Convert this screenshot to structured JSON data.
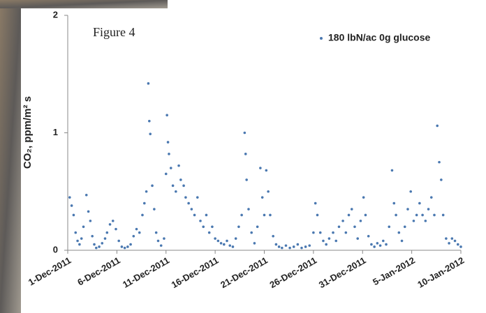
{
  "chart_data": {
    "type": "scatter",
    "title": "Figure 4",
    "y_label": "CO₂, ppm/m² s",
    "legend": "top-right",
    "grid": false,
    "xlim": [
      0,
      40
    ],
    "ylim": [
      0,
      2
    ],
    "xticks": [
      {
        "value": 0,
        "label": "1-Dec-2011"
      },
      {
        "value": 5,
        "label": "6-Dec-2011"
      },
      {
        "value": 10,
        "label": "11-Dec-2011"
      },
      {
        "value": 15,
        "label": "16-Dec-2011"
      },
      {
        "value": 20,
        "label": "21-Dec-2011"
      },
      {
        "value": 25,
        "label": "26-Dec-2011"
      },
      {
        "value": 30,
        "label": "31-Dec-2011"
      },
      {
        "value": 35,
        "label": "5-Jan-2012"
      },
      {
        "value": 40,
        "label": "10-Jan-2012"
      }
    ],
    "yticks": [
      0,
      1,
      2
    ],
    "series": [
      {
        "name": "180 lbN/ac  0g glucose",
        "color": "#4a78b0",
        "x": [
          0.2,
          0.4,
          0.6,
          0.8,
          1.0,
          1.2,
          1.4,
          1.6,
          1.9,
          2.1,
          2.3,
          2.5,
          2.7,
          2.9,
          3.2,
          3.5,
          3.8,
          4.0,
          4.3,
          4.6,
          4.9,
          5.2,
          5.5,
          5.8,
          6.1,
          6.4,
          6.7,
          7.0,
          7.3,
          7.6,
          7.8,
          8.0,
          8.2,
          8.3,
          8.4,
          8.6,
          8.8,
          9.0,
          9.2,
          9.5,
          9.8,
          10.0,
          10.1,
          10.2,
          10.3,
          10.5,
          10.7,
          11.0,
          11.3,
          11.5,
          11.8,
          12.0,
          12.3,
          12.6,
          12.9,
          13.2,
          13.5,
          13.8,
          14.1,
          14.4,
          14.7,
          15.0,
          15.3,
          15.6,
          15.9,
          16.2,
          16.5,
          16.8,
          17.1,
          17.4,
          17.7,
          18.0,
          18.1,
          18.2,
          18.4,
          18.7,
          19.0,
          19.3,
          19.6,
          19.8,
          20.0,
          20.2,
          20.4,
          20.6,
          20.9,
          21.2,
          21.5,
          21.8,
          22.2,
          22.6,
          23.0,
          23.4,
          23.8,
          24.2,
          24.6,
          25.0,
          25.2,
          25.4,
          25.7,
          26.0,
          26.3,
          26.6,
          27.0,
          27.3,
          27.6,
          28.0,
          28.3,
          28.6,
          28.9,
          29.2,
          29.5,
          29.8,
          30.1,
          30.3,
          30.6,
          30.9,
          31.2,
          31.5,
          31.8,
          32.1,
          32.4,
          32.7,
          33.0,
          33.2,
          33.4,
          33.7,
          34.0,
          34.3,
          34.6,
          34.9,
          35.2,
          35.5,
          35.8,
          36.1,
          36.4,
          36.7,
          37.0,
          37.3,
          37.6,
          37.8,
          38.0,
          38.2,
          38.5,
          38.8,
          39.1,
          39.4,
          39.7,
          40.0
        ],
        "values": [
          0.45,
          0.38,
          0.3,
          0.15,
          0.08,
          0.05,
          0.1,
          0.2,
          0.47,
          0.33,
          0.25,
          0.12,
          0.05,
          0.02,
          0.03,
          0.06,
          0.1,
          0.15,
          0.22,
          0.25,
          0.18,
          0.08,
          0.03,
          0.02,
          0.03,
          0.05,
          0.12,
          0.18,
          0.15,
          0.3,
          0.4,
          0.5,
          1.42,
          1.1,
          0.99,
          0.55,
          0.35,
          0.15,
          0.08,
          0.04,
          0.1,
          0.65,
          1.15,
          0.92,
          0.82,
          0.7,
          0.55,
          0.5,
          0.72,
          0.6,
          0.55,
          0.45,
          0.4,
          0.35,
          0.3,
          0.45,
          0.25,
          0.2,
          0.3,
          0.15,
          0.2,
          0.1,
          0.08,
          0.06,
          0.05,
          0.08,
          0.04,
          0.03,
          0.1,
          0.2,
          0.3,
          1.0,
          0.82,
          0.6,
          0.35,
          0.15,
          0.06,
          0.2,
          0.7,
          0.45,
          0.3,
          0.68,
          0.5,
          0.3,
          0.12,
          0.05,
          0.03,
          0.02,
          0.04,
          0.02,
          0.03,
          0.05,
          0.02,
          0.03,
          0.04,
          0.15,
          0.4,
          0.3,
          0.15,
          0.08,
          0.05,
          0.1,
          0.15,
          0.08,
          0.2,
          0.25,
          0.15,
          0.3,
          0.35,
          0.2,
          0.1,
          0.25,
          0.45,
          0.3,
          0.12,
          0.05,
          0.03,
          0.06,
          0.04,
          0.08,
          0.05,
          0.2,
          0.68,
          0.4,
          0.3,
          0.15,
          0.08,
          0.2,
          0.35,
          0.5,
          0.25,
          0.3,
          0.4,
          0.3,
          0.25,
          0.35,
          0.45,
          0.3,
          1.06,
          0.75,
          0.6,
          0.3,
          0.1,
          0.06,
          0.1,
          0.08,
          0.05,
          0.03
        ]
      }
    ]
  }
}
